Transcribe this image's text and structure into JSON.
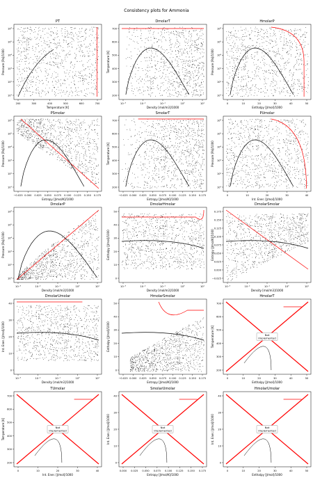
{
  "figure": {
    "title": "Consistency plots for Ammonia"
  },
  "colors": {
    "curve": "#000000",
    "highlight": "#ff0000",
    "frame": "#000000"
  },
  "chart_data": [
    {
      "name": "PT",
      "type": "scatter",
      "title": "PT",
      "xlabel": "Temperature [K]",
      "ylabel": "Pressure [Pa]/1000",
      "xticks": [
        "200",
        "300",
        "400",
        "500",
        "600",
        "700"
      ],
      "yticks": [
        "10¹",
        "10²",
        "10³",
        "10⁴",
        "10⁵",
        "10⁶"
      ],
      "xlim": [
        170,
        740
      ],
      "yscale": "log",
      "status": ""
    },
    {
      "name": "DmolarT",
      "type": "scatter",
      "title": "DmolarT",
      "xlabel": "Density [mol/m3]/1000",
      "ylabel": "Temperature [K]",
      "xticks": [
        "10⁻³",
        "10⁻²",
        "10⁻¹",
        "10⁰",
        "10¹"
      ],
      "yticks": [
        "200",
        "300",
        "400",
        "500",
        "600",
        "700"
      ],
      "ylim": [
        180,
        740
      ],
      "xscale": "log",
      "status": ""
    },
    {
      "name": "HmolarP",
      "type": "scatter",
      "title": "HmolarP",
      "xlabel": "Enthalpy [J/mol]/1000",
      "ylabel": "Pressure [Pa]/1000",
      "xticks": [
        "0",
        "10",
        "20",
        "30",
        "40",
        "50"
      ],
      "yticks": [
        "10¹",
        "10²",
        "10³",
        "10⁴",
        "10⁵",
        "10⁶"
      ],
      "xlim": [
        -2,
        53
      ],
      "yscale": "log",
      "status": ""
    },
    {
      "name": "PSmolar",
      "type": "scatter",
      "title": "PSmolar",
      "xlabel": "Entropy [J/mol/K]/1000",
      "ylabel": "Pressure [Pa]/1000",
      "xticks": [
        "−0.025",
        "0.000",
        "0.025",
        "0.050",
        "0.075",
        "0.100",
        "0.125",
        "0.150",
        "0.175"
      ],
      "yticks": [
        "10¹",
        "10²",
        "10³",
        "10⁴",
        "10⁵",
        "10⁶"
      ],
      "xlim": [
        -0.03,
        0.185
      ],
      "yscale": "log",
      "status": ""
    },
    {
      "name": "SmolarT",
      "type": "scatter",
      "title": "SmolarT",
      "xlabel": "Entropy [J/mol/K]/1000",
      "ylabel": "Temperature [K]",
      "xticks": [
        "−0.025",
        "0.000",
        "0.025",
        "0.050",
        "0.075",
        "0.100",
        "0.125",
        "0.150",
        "0.175"
      ],
      "yticks": [
        "200",
        "300",
        "400",
        "500",
        "600",
        "700"
      ],
      "xlim": [
        -0.03,
        0.185
      ],
      "ylim": [
        180,
        740
      ],
      "status": ""
    },
    {
      "name": "PUmolar",
      "type": "scatter",
      "title": "PUmolar",
      "xlabel": "Int. Ener. [J/mol]/1000",
      "ylabel": "Pressure [Pa]/1000",
      "xticks": [
        "0",
        "10",
        "20",
        "30",
        "40"
      ],
      "yticks": [
        "10¹",
        "10²",
        "10³",
        "10⁴",
        "10⁵",
        "10⁶"
      ],
      "xlim": [
        -3,
        43
      ],
      "yscale": "log",
      "status": ""
    },
    {
      "name": "DmolarP",
      "type": "scatter",
      "title": "DmolarP",
      "xlabel": "Density [mol/m3]/1000",
      "ylabel": "Pressure [Pa]/1000",
      "xticks": [
        "10⁻³",
        "10⁻²",
        "10⁻¹",
        "10⁰",
        "10¹"
      ],
      "yticks": [
        "10¹",
        "10²",
        "10³",
        "10⁴",
        "10⁵",
        "10⁶"
      ],
      "xscale": "log",
      "yscale": "log",
      "status": ""
    },
    {
      "name": "DmolarHmolar",
      "type": "scatter",
      "title": "DmolarHmolar",
      "xlabel": "Density [mol/m3]/1000",
      "ylabel": "Enthalpy [J/mol]/1000",
      "xticks": [
        "10⁻³",
        "10⁻²",
        "10⁻¹",
        "10⁰",
        "10¹"
      ],
      "yticks": [
        "0",
        "10",
        "20",
        "30",
        "40",
        "50"
      ],
      "ylim": [
        -2,
        53
      ],
      "xscale": "log",
      "status": ""
    },
    {
      "name": "DmolarSmolar",
      "type": "scatter",
      "title": "DmolarSmolar",
      "xlabel": "Density [mol/m3]/1000",
      "ylabel": "Entropy [J/mol/K]/1000",
      "xticks": [
        "10⁻³",
        "10⁻²",
        "10⁻¹",
        "10⁰",
        "10¹"
      ],
      "yticks": [
        "−0.025",
        "0.000",
        "0.025",
        "0.050",
        "0.075",
        "0.100",
        "0.125",
        "0.150",
        "0.175"
      ],
      "ylim": [
        -0.03,
        0.185
      ],
      "xscale": "log",
      "status": ""
    },
    {
      "name": "DmolarUmolar",
      "type": "scatter",
      "title": "DmolarUmolar",
      "xlabel": "Density [mol/m3]/1000",
      "ylabel": "Int. Ener. [J/mol]/1000",
      "xticks": [
        "10⁻³",
        "10⁻²",
        "10⁻¹",
        "10⁰",
        "10¹"
      ],
      "yticks": [
        "0",
        "10",
        "20",
        "30",
        "40"
      ],
      "ylim": [
        -3,
        43
      ],
      "xscale": "log",
      "status": ""
    },
    {
      "name": "HmolarSmolar",
      "type": "scatter",
      "title": "HmolarSmolar",
      "xlabel": "Entropy [J/mol/K]/1000",
      "ylabel": "Enthalpy [J/mol]/1000",
      "xticks": [
        "−0.025",
        "0.000",
        "0.025",
        "0.050",
        "0.075",
        "0.100",
        "0.125",
        "0.150",
        "0.175"
      ],
      "yticks": [
        "0",
        "10",
        "20",
        "30",
        "40",
        "50"
      ],
      "xlim": [
        -0.03,
        0.185
      ],
      "ylim": [
        -2,
        53
      ],
      "status": ""
    },
    {
      "name": "HmolarT",
      "type": "scatter",
      "title": "HmolarT",
      "xlabel": "Enthalpy [J/mol]/1000",
      "ylabel": "Temperature [K]",
      "xticks": [
        "0",
        "10",
        "20",
        "30",
        "40",
        "50"
      ],
      "yticks": [
        "200",
        "300",
        "400",
        "500",
        "600",
        "700"
      ],
      "xlim": [
        -2,
        53
      ],
      "ylim": [
        180,
        740
      ],
      "status": "Not Implemented"
    },
    {
      "name": "TUmolar",
      "type": "scatter",
      "title": "TUmolar",
      "xlabel": "Int. Ener. [J/mol]/1000",
      "ylabel": "Temperature [K]",
      "xticks": [
        "0",
        "10",
        "20",
        "30",
        "40"
      ],
      "yticks": [
        "200",
        "300",
        "400",
        "500",
        "600",
        "700"
      ],
      "xlim": [
        -3,
        43
      ],
      "ylim": [
        180,
        740
      ],
      "status": "Not Implemented"
    },
    {
      "name": "SmolarUmolar",
      "type": "scatter",
      "title": "SmolarUmolar",
      "xlabel": "Entropy [J/mol/K]/1000",
      "ylabel": "Int. Ener. [J/mol]/1000",
      "xticks": [
        "0.000",
        "0.025",
        "0.050",
        "0.075",
        "0.100",
        "0.125",
        "0.150",
        "0.175"
      ],
      "yticks": [
        "0",
        "10",
        "20",
        "30",
        "40"
      ],
      "xlim": [
        -0.015,
        0.185
      ],
      "ylim": [
        -3,
        43
      ],
      "status": "Not Implemented"
    },
    {
      "name": "HmolarUmolar",
      "type": "scatter",
      "title": "HmolarUmolar",
      "xlabel": "Enthalpy [J/mol]/1000",
      "ylabel": "Int. Ener. [J/mol]/1000",
      "xticks": [
        "0",
        "10",
        "20",
        "30",
        "40",
        "50"
      ],
      "yticks": [
        "0",
        "10",
        "20",
        "30",
        "40"
      ],
      "xlim": [
        -2,
        53
      ],
      "ylim": [
        -3,
        43
      ],
      "status": "Not Implemented"
    }
  ]
}
